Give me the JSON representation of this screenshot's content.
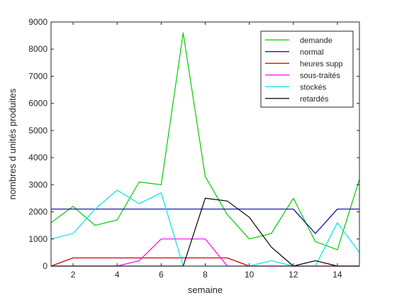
{
  "chart_data": {
    "type": "line",
    "xlabel": "semaine",
    "ylabel": "nombres d unités produites",
    "xlim": [
      1,
      15
    ],
    "ylim": [
      0,
      9000
    ],
    "xticks": [
      2,
      4,
      6,
      8,
      10,
      12,
      14
    ],
    "yticks": [
      0,
      1000,
      2000,
      3000,
      4000,
      5000,
      6000,
      7000,
      8000,
      9000
    ],
    "grid": false,
    "legend_position": "top-right",
    "x": [
      1,
      2,
      3,
      4,
      5,
      6,
      7,
      8,
      9,
      10,
      11,
      12,
      13,
      14,
      15
    ],
    "series": [
      {
        "name": "demande",
        "color": "#00cc00",
        "values": [
          1600,
          2200,
          1500,
          1700,
          3100,
          3000,
          8600,
          3300,
          1900,
          1000,
          1200,
          2500,
          900,
          600,
          3200
        ]
      },
      {
        "name": "normal",
        "color": "#0000aa",
        "values": [
          2100,
          2100,
          2100,
          2100,
          2100,
          2100,
          2100,
          2100,
          2100,
          2100,
          2100,
          2100,
          1200,
          2100,
          2100
        ]
      },
      {
        "name": "heures supp",
        "color": "#cc0000",
        "values": [
          0,
          300,
          300,
          300,
          300,
          300,
          300,
          300,
          300,
          0,
          0,
          0,
          0,
          0,
          0
        ]
      },
      {
        "name": "sous-traités",
        "color": "#ff00ff",
        "values": [
          0,
          0,
          0,
          0,
          200,
          1000,
          1000,
          1000,
          0,
          0,
          0,
          0,
          0,
          0,
          0
        ]
      },
      {
        "name": "stockés",
        "color": "#00e5e5",
        "values": [
          1000,
          1200,
          2100,
          2800,
          2300,
          2700,
          0,
          0,
          0,
          0,
          200,
          0,
          0,
          1600,
          500
        ]
      },
      {
        "name": "retardés",
        "color": "#000000",
        "values": [
          0,
          0,
          0,
          0,
          0,
          0,
          0,
          2500,
          2400,
          1800,
          700,
          0,
          200,
          0,
          0
        ]
      }
    ]
  }
}
